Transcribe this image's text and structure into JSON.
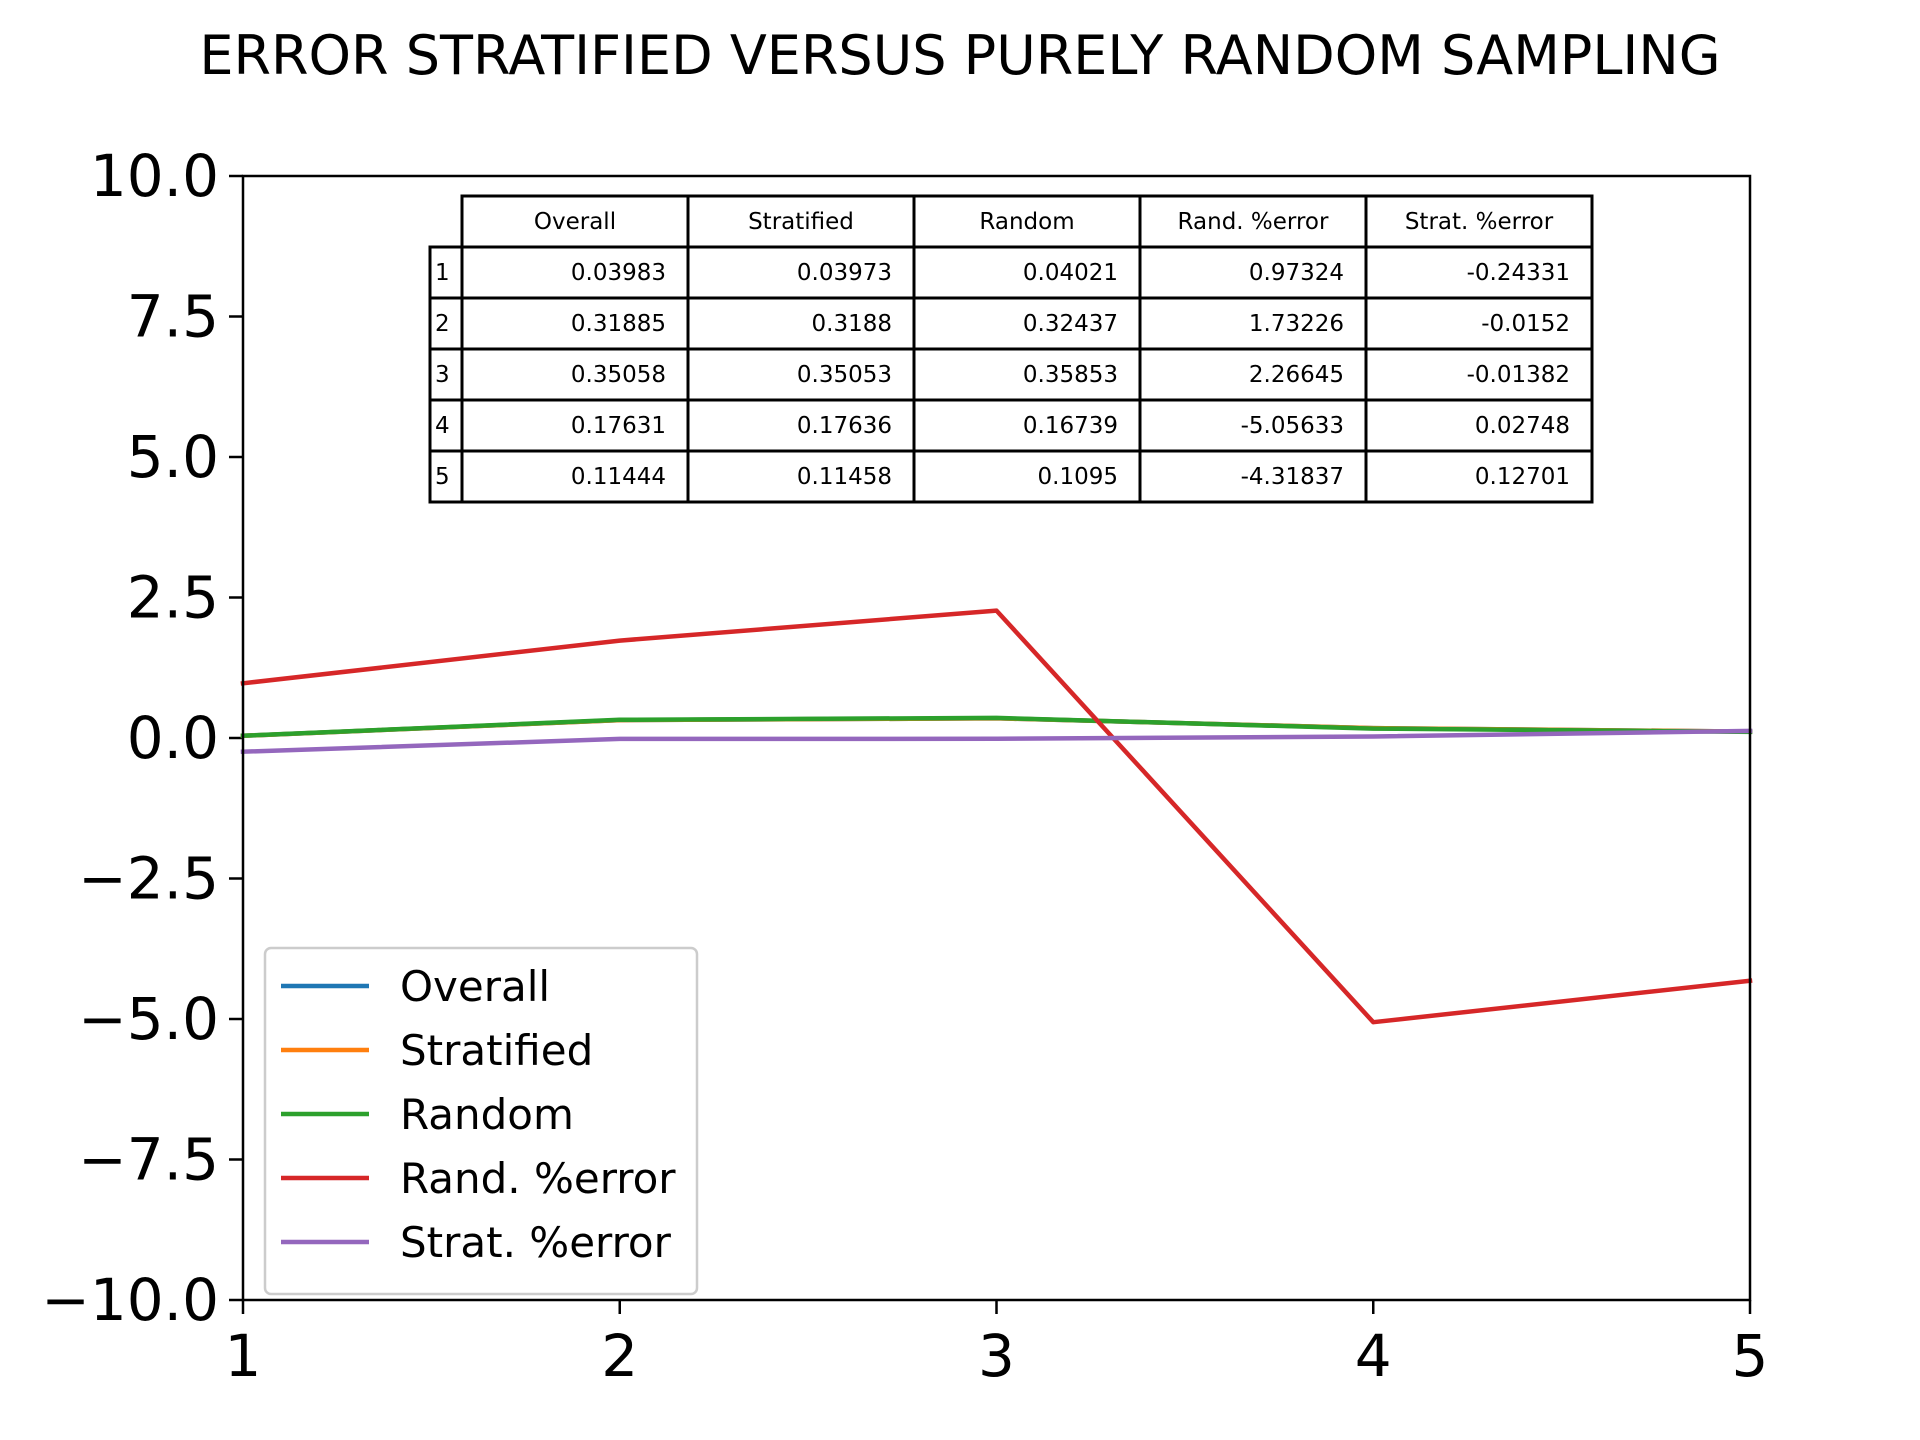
{
  "chart_data": {
    "type": "line",
    "title": "ERROR STRATIFIED VERSUS PURELY RANDOM SAMPLING",
    "xlabel": "",
    "ylabel": "",
    "x": [
      1,
      2,
      3,
      4,
      5
    ],
    "xlim": [
      1,
      5
    ],
    "ylim": [
      -10,
      10
    ],
    "xticks": [
      "1",
      "2",
      "3",
      "4",
      "5"
    ],
    "yticks": [
      "10.0",
      "7.5",
      "5.0",
      "2.5",
      "0.0",
      "−2.5",
      "−5.0",
      "−7.5",
      "−10.0"
    ],
    "grid": false,
    "legend_position": "lower-left",
    "series": [
      {
        "name": "Overall",
        "color": "#1f77b4",
        "values": [
          0.03983,
          0.31885,
          0.35058,
          0.17631,
          0.11444
        ]
      },
      {
        "name": "Stratified",
        "color": "#ff7f0e",
        "values": [
          0.03973,
          0.3188,
          0.35053,
          0.17636,
          0.11458
        ]
      },
      {
        "name": "Random",
        "color": "#2ca02c",
        "values": [
          0.04021,
          0.32437,
          0.35853,
          0.16739,
          0.1095
        ]
      },
      {
        "name": "Rand. %error",
        "color": "#d62728",
        "values": [
          0.97324,
          1.73226,
          2.26645,
          -5.05633,
          -4.31837
        ]
      },
      {
        "name": "Strat. %error",
        "color": "#9467bd",
        "values": [
          -0.24331,
          -0.0152,
          -0.01382,
          0.02748,
          0.12701
        ]
      }
    ],
    "table": {
      "columns": [
        "Overall",
        "Stratified",
        "Random",
        "Rand. %error",
        "Strat. %error"
      ],
      "rows": [
        {
          "label": "1",
          "cells": [
            "0.03983",
            "0.03973",
            "0.04021",
            "0.97324",
            "-0.24331"
          ]
        },
        {
          "label": "2",
          "cells": [
            "0.31885",
            "0.3188",
            "0.32437",
            "1.73226",
            "-0.0152"
          ]
        },
        {
          "label": "3",
          "cells": [
            "0.35058",
            "0.35053",
            "0.35853",
            "2.26645",
            "-0.01382"
          ]
        },
        {
          "label": "4",
          "cells": [
            "0.17631",
            "0.17636",
            "0.16739",
            "-5.05633",
            "0.02748"
          ]
        },
        {
          "label": "5",
          "cells": [
            "0.11444",
            "0.11458",
            "0.1095",
            "-4.31837",
            "0.12701"
          ]
        }
      ]
    }
  }
}
